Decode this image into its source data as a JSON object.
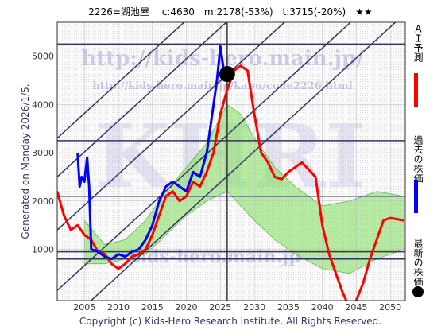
{
  "chart_data": {
    "type": "line",
    "title": "2226=湖池屋　 c:4630　m:2178(-53%)　t:3715(-20%)　★★",
    "side_label": "Generated on Monday 2026/1/5.",
    "footer": "Copyright (c) Kids-Hero Research Institute. All Rights Reserved.",
    "watermarks": [
      "http://kids-hero.main.jp/",
      "http://kids-hero.main.jp/kabu/code2226.html",
      "KHRI",
      "kids-hero.main.jp"
    ],
    "xlim": [
      2001,
      2052.2
    ],
    "ylim": [
      -60,
      5700
    ],
    "xticks": [
      2005,
      2010,
      2015,
      2020,
      2025,
      2030,
      2035,
      2040,
      2045,
      2050
    ],
    "yticks": [
      1000,
      2000,
      3000,
      4000,
      5000
    ],
    "series": [
      {
        "name": "ＡＩ予測",
        "color": "#ff0000",
        "x": [
          2001,
          2002,
          2003,
          2004,
          2005,
          2006,
          2007,
          2008,
          2009,
          2010,
          2011,
          2012,
          2013,
          2014,
          2015,
          2016,
          2017,
          2018,
          2019,
          2020,
          2021,
          2022,
          2023,
          2024,
          2025,
          2026,
          2027,
          2028,
          2029,
          2030,
          2031,
          2032,
          2033,
          2034,
          2035,
          2036,
          2037,
          2038,
          2039,
          2040,
          2041,
          2042,
          2043,
          2044,
          2045,
          2046,
          2047,
          2048,
          2049,
          2050,
          2052
        ],
        "values": [
          2200,
          1700,
          1400,
          1500,
          1300,
          1200,
          950,
          900,
          700,
          600,
          700,
          850,
          900,
          1000,
          1300,
          1700,
          2100,
          2200,
          2000,
          2100,
          2400,
          2300,
          2600,
          3000,
          3800,
          4300,
          4700,
          4800,
          4700,
          3800,
          3000,
          2800,
          2500,
          2450,
          2600,
          2700,
          2800,
          2650,
          2500,
          1500,
          900,
          500,
          100,
          -200,
          -50,
          300,
          800,
          1200,
          1600,
          1650,
          1600
        ]
      },
      {
        "name": "過去の株価",
        "color": "#0000ff",
        "x": [
          2004.0,
          2004.3,
          2004.6,
          2005.0,
          2005.4,
          2005.7,
          2006.0,
          2007,
          2008,
          2009,
          2010,
          2011,
          2012,
          2013,
          2014,
          2015,
          2016,
          2017,
          2018,
          2019,
          2020,
          2021,
          2022,
          2023,
          2024,
          2024.5,
          2025,
          2025.5,
          2026
        ],
        "values": [
          3000,
          2300,
          2500,
          2400,
          2900,
          2300,
          1000,
          950,
          850,
          800,
          900,
          850,
          950,
          1000,
          1200,
          1500,
          2000,
          2300,
          2400,
          2300,
          2200,
          2600,
          2500,
          3000,
          4000,
          4500,
          5200,
          4700,
          4630
        ]
      }
    ],
    "band": {
      "color": "#88dd66",
      "x": [
        2005,
        2008,
        2011,
        2014,
        2017,
        2020,
        2023,
        2026,
        2028,
        2030,
        2033,
        2036,
        2040,
        2044,
        2048,
        2052
      ],
      "upper": [
        1600,
        1100,
        1200,
        1600,
        2200,
        2700,
        3200,
        4000,
        3800,
        3300,
        2700,
        2300,
        1900,
        2000,
        2200,
        2100
      ],
      "lower": [
        700,
        700,
        800,
        900,
        1300,
        1700,
        2000,
        2200,
        1900,
        1600,
        1200,
        900,
        600,
        500,
        800,
        1000
      ]
    },
    "latest": {
      "name": "最新の株価",
      "x": 2026,
      "value": 4630,
      "color": "#000000"
    },
    "hlines": [
      5250,
      3250,
      2100,
      950,
      800
    ],
    "vline": 2026,
    "diagonals": [
      {
        "x": [
          2001,
          2052
        ],
        "values": [
          -700,
          5860
        ]
      },
      {
        "x": [
          2001,
          2052
        ],
        "values": [
          150,
          6710
        ]
      },
      {
        "x": [
          2001,
          2052
        ],
        "values": [
          1400,
          7960
        ]
      },
      {
        "x": [
          2001,
          2052
        ],
        "values": [
          2500,
          9060
        ]
      },
      {
        "x": [
          2001,
          2052
        ],
        "values": [
          3300,
          9860
        ]
      }
    ]
  }
}
